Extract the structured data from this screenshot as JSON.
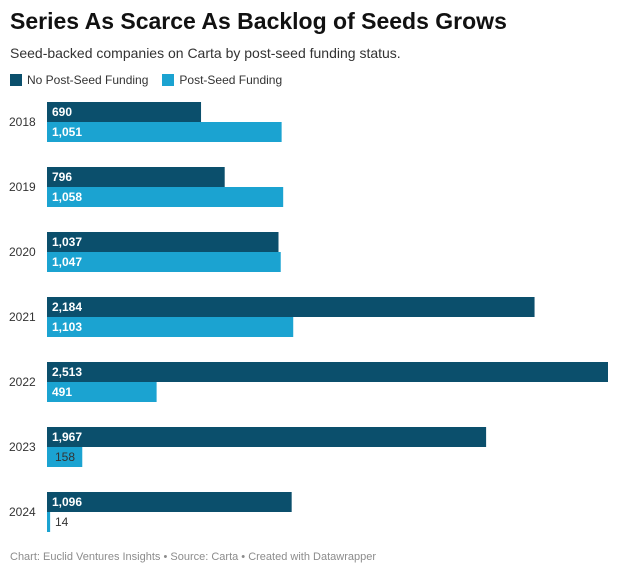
{
  "header": {
    "title": "Series As Scarce As Backlog of Seeds Grows",
    "subtitle": "Seed-backed companies on Carta by post-seed funding status."
  },
  "footer": {
    "text": "Chart: Euclid Ventures Insights • Source: Carta • Created with Datawrapper"
  },
  "chart_data": {
    "type": "bar",
    "orientation": "horizontal",
    "title": "Series As Scarce As Backlog of Seeds Grows",
    "subtitle": "Seed-backed companies on Carta by post-seed funding status.",
    "categories": [
      "2018",
      "2019",
      "2020",
      "2021",
      "2022",
      "2023",
      "2024"
    ],
    "series": [
      {
        "name": "No Post-Seed Funding",
        "color": "#0b4f6c",
        "values": [
          690,
          796,
          1037,
          2184,
          2513,
          1967,
          1096
        ],
        "labels": [
          "690",
          "796",
          "1,037",
          "2,184",
          "2,513",
          "1,967",
          "1,096"
        ]
      },
      {
        "name": "Post-Seed Funding",
        "color": "#1ba3d1",
        "values": [
          1051,
          1058,
          1047,
          1103,
          491,
          158,
          14
        ],
        "labels": [
          "1,051",
          "1,058",
          "1,047",
          "1,103",
          "491",
          "158",
          "14"
        ]
      }
    ],
    "xlim": [
      0,
      2513
    ],
    "grid": false,
    "legend": "top-left",
    "value_labels": "inside-left"
  }
}
